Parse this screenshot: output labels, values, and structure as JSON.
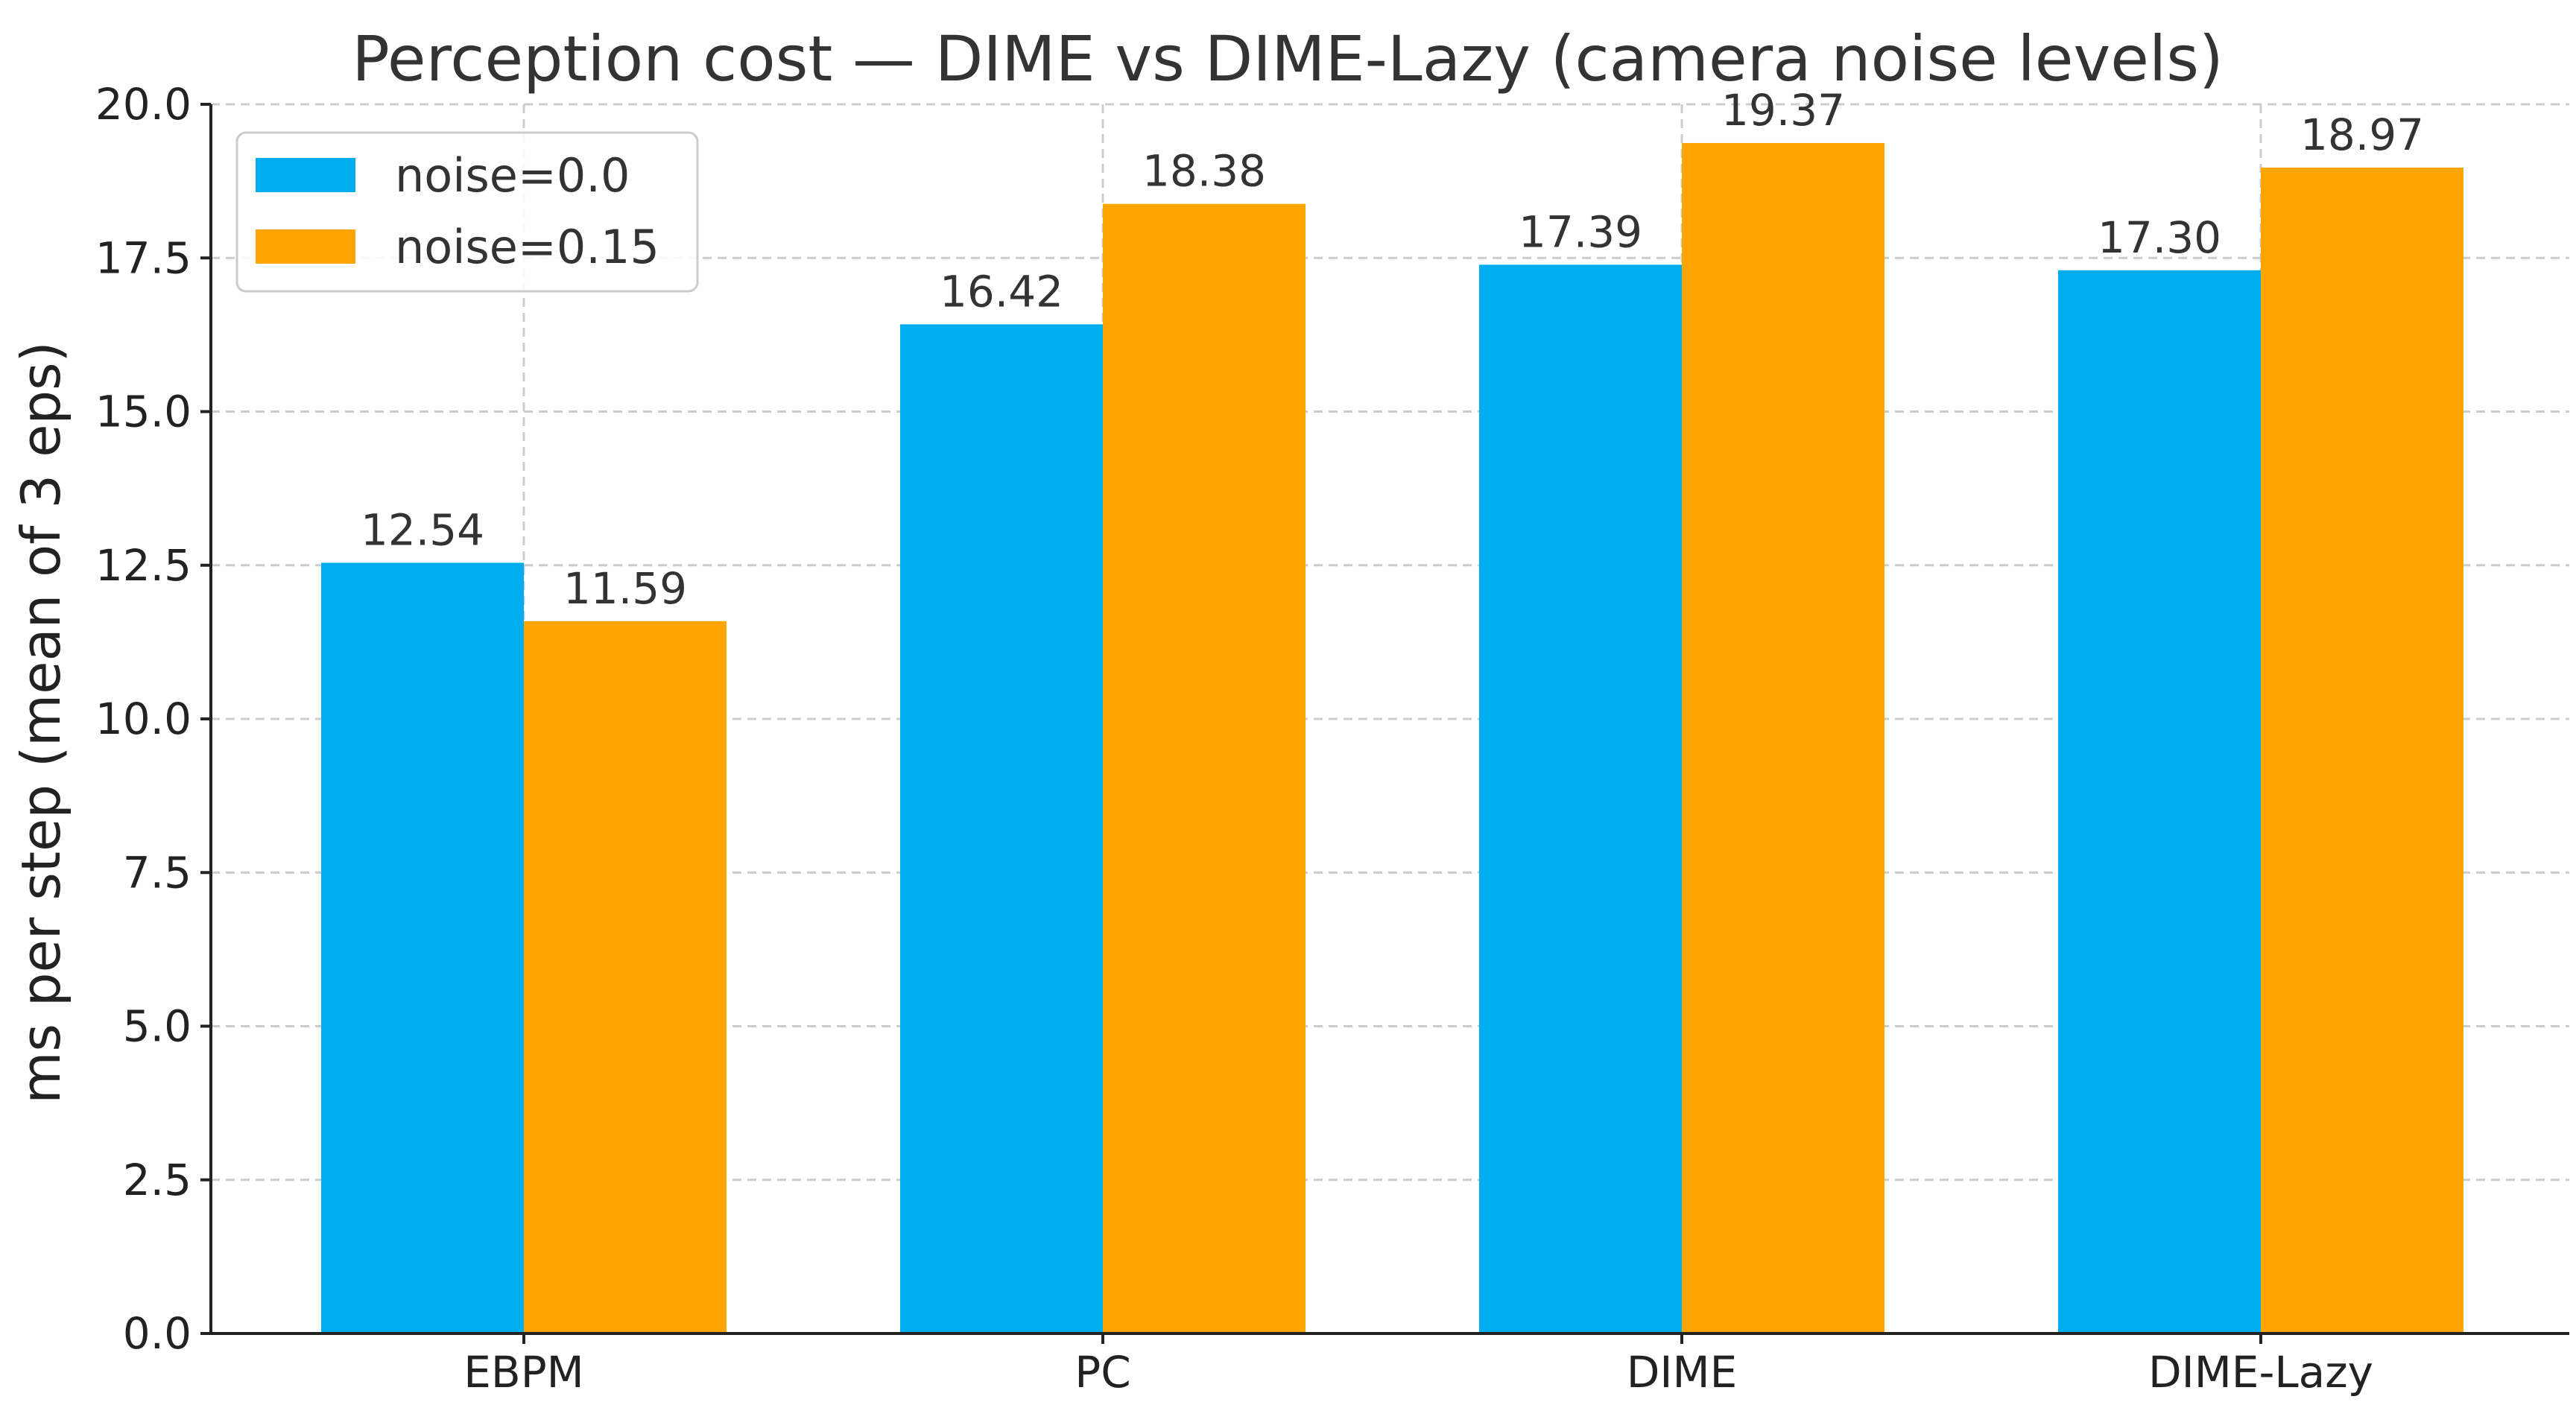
{
  "chart_data": {
    "type": "bar",
    "title": "Perception cost — DIME vs DIME-Lazy (camera noise levels)",
    "xlabel": "",
    "ylabel": "ms per step (mean of 3 eps)",
    "ylim": [
      0,
      20
    ],
    "yticks": [
      "0.0",
      "2.5",
      "5.0",
      "7.5",
      "10.0",
      "12.5",
      "15.0",
      "17.5",
      "20.0"
    ],
    "ytick_values": [
      0,
      2.5,
      5,
      7.5,
      10,
      12.5,
      15,
      17.5,
      20
    ],
    "grid": true,
    "legend_position": "top-left",
    "categories": [
      "EBPM",
      "PC",
      "DIME",
      "DIME-Lazy"
    ],
    "series": [
      {
        "name": "noise=0.0",
        "color": "#00AEEF",
        "values": [
          12.54,
          16.42,
          17.39,
          17.3
        ],
        "labels": [
          "12.54",
          "16.42",
          "17.39",
          "17.30"
        ]
      },
      {
        "name": "noise=0.15",
        "color": "#FFA500",
        "values": [
          11.59,
          18.38,
          19.37,
          18.97
        ],
        "labels": [
          "11.59",
          "18.38",
          "19.37",
          "18.97"
        ]
      }
    ]
  }
}
